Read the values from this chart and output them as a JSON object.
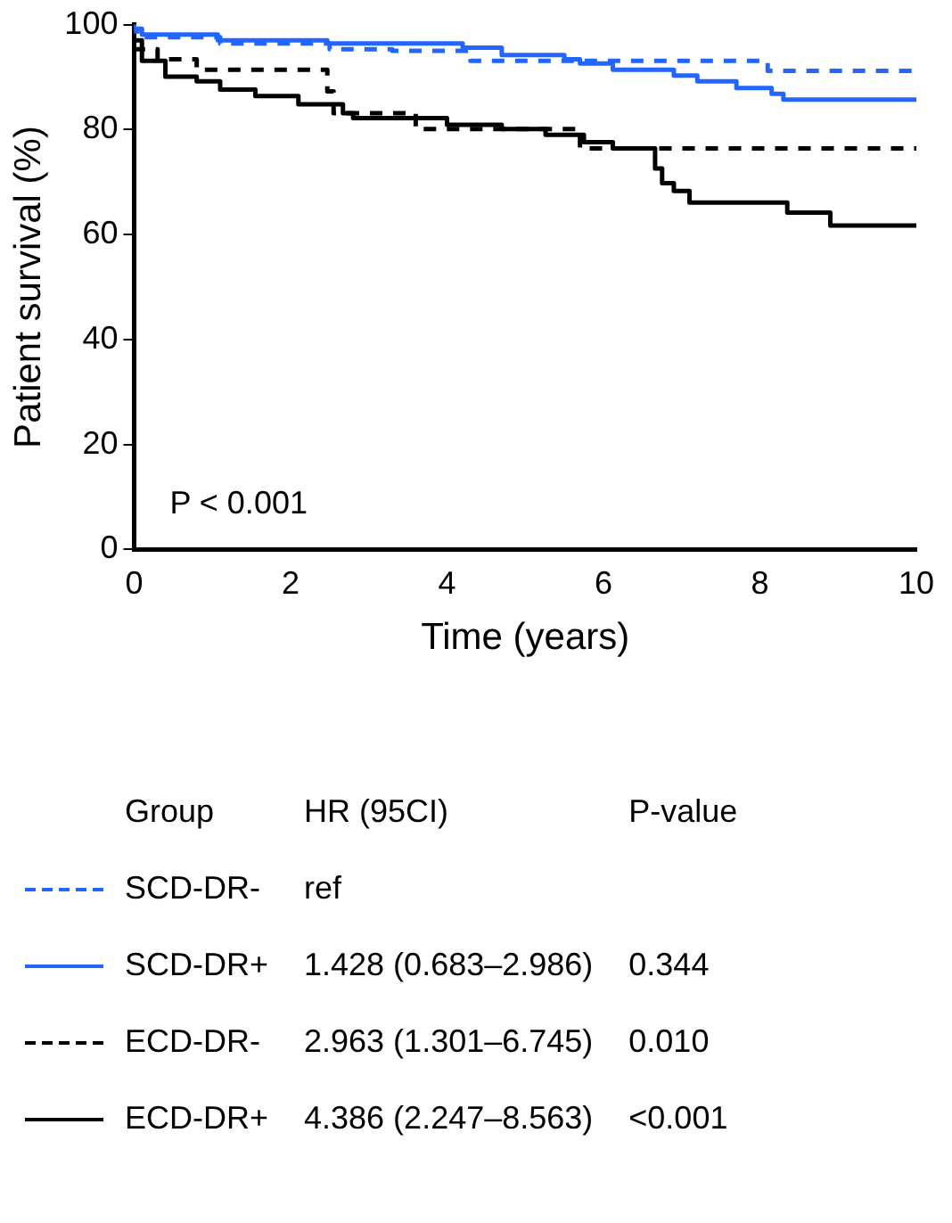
{
  "chart_data": {
    "type": "step",
    "xlabel": "Time (years)",
    "ylabel": "Patient survival (%)",
    "xlim": [
      0,
      10
    ],
    "xticks": [
      0,
      2,
      4,
      6,
      8,
      10
    ],
    "ylim": [
      0,
      100
    ],
    "yticks": [
      0,
      20,
      40,
      60,
      80,
      100
    ],
    "grid": false,
    "legend": "bottom",
    "series": [
      {
        "name": "SCD-DR-",
        "color": "#2266ff",
        "line_style": "dashed",
        "x": [
          0,
          0.1,
          1.1,
          2.5,
          3.3,
          4.3,
          8.1,
          9.1,
          10
        ],
        "values": [
          100,
          98.7,
          97.6,
          96.4,
          95.3,
          95,
          93.1,
          91.2,
          91.2
        ]
      },
      {
        "name": "SCD-DR+",
        "color": "#2266ff",
        "line_style": "solid",
        "x": [
          0,
          0.1,
          1.07,
          2.47,
          4.2,
          4.7,
          5.5,
          5.7,
          6.12,
          6.9,
          7.2,
          7.7,
          8.15,
          8.3,
          8.55,
          10
        ],
        "values": [
          100,
          99.2,
          98.1,
          97,
          96.4,
          95.6,
          94.2,
          93.4,
          92.6,
          91.4,
          90.3,
          89.2,
          87.9,
          86.8,
          85.7,
          85.7
        ]
      },
      {
        "name": "ECD-DR-",
        "color": "#000000",
        "line_style": "dashed",
        "x": [
          0,
          0.3,
          0.8,
          2.47,
          2.55,
          3.6,
          5.7,
          7.53,
          10
        ],
        "values": [
          100,
          95.3,
          93.4,
          91.4,
          87.3,
          83.1,
          80.1,
          76.4,
          76.4
        ]
      },
      {
        "name": "ECD-DR+",
        "color": "#000000",
        "line_style": "solid",
        "x": [
          0,
          0.1,
          0.4,
          0.8,
          1.1,
          1.55,
          2.1,
          2.67,
          2.8,
          4.0,
          4.7,
          5.26,
          5.75,
          6.12,
          6.66,
          6.75,
          6.9,
          7.1,
          8.35,
          8.9,
          9.26,
          10
        ],
        "values": [
          100,
          97,
          93.1,
          90.1,
          89.2,
          87.6,
          86.4,
          84.8,
          83.1,
          82.2,
          80.9,
          80.1,
          79,
          77.6,
          76.4,
          72.6,
          69.8,
          68.3,
          66.1,
          64.2,
          61.7,
          61.7
        ]
      }
    ],
    "annotations": [
      "P < 0.001",
      "Group",
      "HR (95CI)",
      "P-value",
      "ref",
      null,
      "1.428 (0.683–2.986)",
      "0.344",
      "2.963 (1.301–6.745)",
      "0.010",
      "4.386 (2.247–8.563)",
      "<0.001"
    ]
  }
}
